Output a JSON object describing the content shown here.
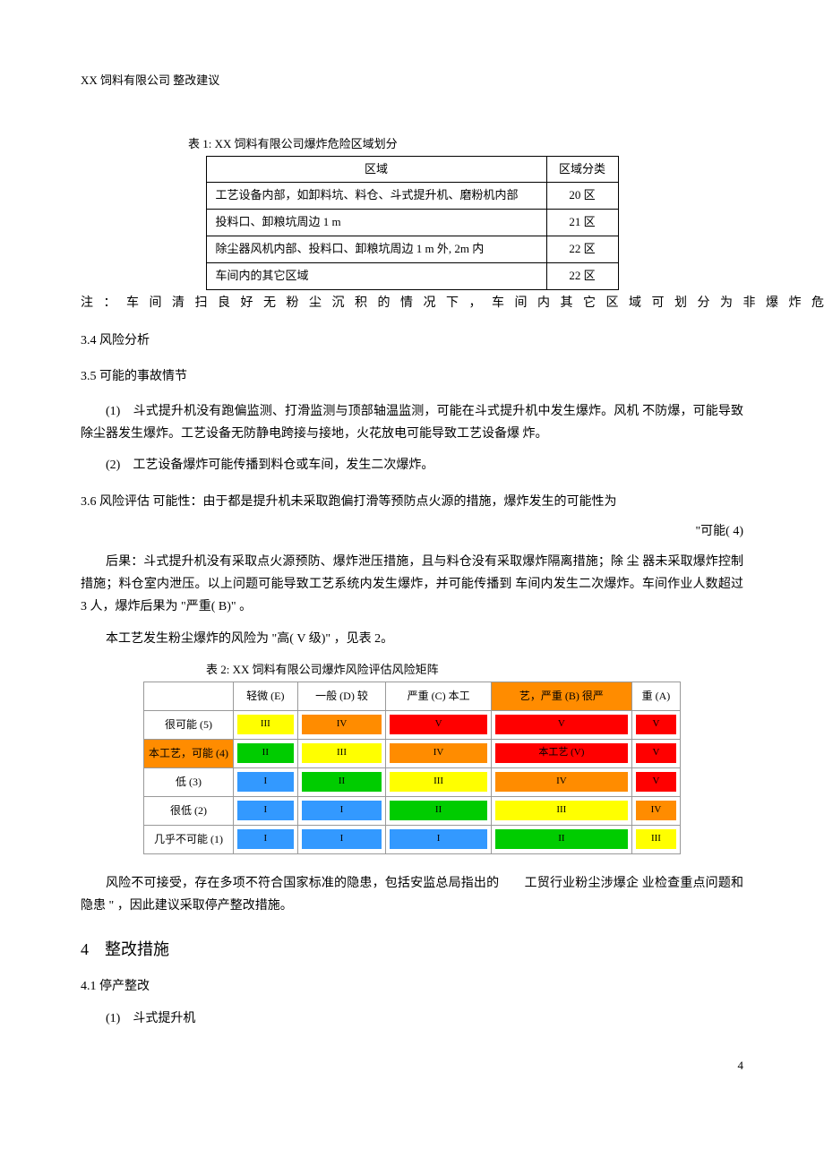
{
  "header": "XX 饲料有限公司  整改建议",
  "table1": {
    "caption": "表 1: XX 饲料有限公司爆炸危险区域划分",
    "col_area": "区域",
    "col_class": "区域分类",
    "rows": [
      {
        "area": "工艺设备内部，如卸料坑、料仓、斗式提升机、磨粉机内部",
        "cls": "20 区"
      },
      {
        "area": "投料口、卸粮坑周边  1 m",
        "cls": "21 区"
      },
      {
        "area": "除尘器风机内部、投料口、卸粮坑周边  1 m 外, 2m 内",
        "cls": "22 区"
      },
      {
        "area": "车间内的其它区域",
        "cls": "22 区"
      }
    ]
  },
  "note": "注 ： 车 间 清 扫 良 好 无 粉 尘 沉 积 的 情 况 下 ， 车 间 内 其 它 区 域 可 划 分 为 非 爆 炸 危 险 区 域 。",
  "s34": "3.4  风险分析",
  "s35": "3.5  可能的事故情节",
  "li1": "(1)　斗式提升机没有跑偏监测、打滑监测与顶部轴温监测，可能在斗式提升机中发生爆炸。风机 不防爆，可能导致除尘器发生爆炸。工艺设备无防静电跨接与接地，火花放电可能导致工艺设备爆 炸。",
  "li2": "(2)　工艺设备爆炸可能传播到料仓或车间，发生二次爆炸。",
  "s36": "3.6  风险评估  可能性：由于都是提升机未采取跑偏打滑等预防点火源的措施，爆炸发生的可能性为",
  "s36r": "\"可能(  4)",
  "p_cons": "后果：斗式提升机没有采取点火源预防、爆炸泄压措施，且与料仓没有采取爆炸隔离措施；除  尘 器未采取爆炸控制措施；料仓室内泄压。以上问题可能导致工艺系统内发生爆炸，并可能传播到  车间内发生二次爆炸。车间作业人数超过　　3 人，爆炸后果为  \"严重(  B)\" 。",
  "p_risk": "本工艺发生粉尘爆炸的风险为  \"高(  V 级)\" ，见表 2。",
  "table2": {
    "caption": "表 2: XX 饲料有限公司爆炸风险评估风险矩阵",
    "cols": [
      "",
      "轻微 (E)",
      "一般 (D) 较",
      "严重 (C) 本工",
      "艺，严重 (B) 很严",
      "重 (A)"
    ],
    "rows_labels": [
      "很可能 (5)",
      "本工艺，可能 (4)",
      "低 (3)",
      "很低 (2)",
      "几乎不可能 (1)"
    ],
    "cells": [
      [
        {
          "t": "III",
          "c": "#ffff00"
        },
        {
          "t": "IV",
          "c": "#ff8c00"
        },
        {
          "t": "V",
          "c": "#ff0000"
        },
        {
          "t": "V",
          "c": "#ff0000"
        },
        {
          "t": "V",
          "c": "#ff0000"
        }
      ],
      [
        {
          "t": "II",
          "c": "#00cc00"
        },
        {
          "t": "III",
          "c": "#ffff00"
        },
        {
          "t": "IV",
          "c": "#ff8c00"
        },
        {
          "t": "本工艺 (V)",
          "c": "#ff0000"
        },
        {
          "t": "V",
          "c": "#ff0000"
        }
      ],
      [
        {
          "t": "I",
          "c": "#3399ff"
        },
        {
          "t": "II",
          "c": "#00cc00"
        },
        {
          "t": "III",
          "c": "#ffff00"
        },
        {
          "t": "IV",
          "c": "#ff8c00"
        },
        {
          "t": "V",
          "c": "#ff0000"
        }
      ],
      [
        {
          "t": "I",
          "c": "#3399ff"
        },
        {
          "t": "I",
          "c": "#3399ff"
        },
        {
          "t": "II",
          "c": "#00cc00"
        },
        {
          "t": "III",
          "c": "#ffff00"
        },
        {
          "t": "IV",
          "c": "#ff8c00"
        }
      ],
      [
        {
          "t": "I",
          "c": "#3399ff"
        },
        {
          "t": "I",
          "c": "#3399ff"
        },
        {
          "t": "I",
          "c": "#3399ff"
        },
        {
          "t": "II",
          "c": "#00cc00"
        },
        {
          "t": "III",
          "c": "#ffff00"
        }
      ]
    ],
    "rowhead_bg": [
      "#ffffff",
      "#ff8c00",
      "#ffffff",
      "#ffffff",
      "#ffffff"
    ],
    "colhead_bg": [
      "#ffffff",
      "#ffffff",
      "#ffffff",
      "#ffffff",
      "#ff8c00",
      "#ffffff"
    ]
  },
  "p_unaccept": "风险不可接受，存在多项不符合国家标准的隐患，包括安监总局指出的　　工贸行业粉尘涉爆企 业检查重点问题和隐患  \"  ，因此建议采取停产整改措施。",
  "h4": "4　整改措施",
  "h41": "4.1 停产整改",
  "li41": "(1)　斗式提升机",
  "pagenum": "4"
}
